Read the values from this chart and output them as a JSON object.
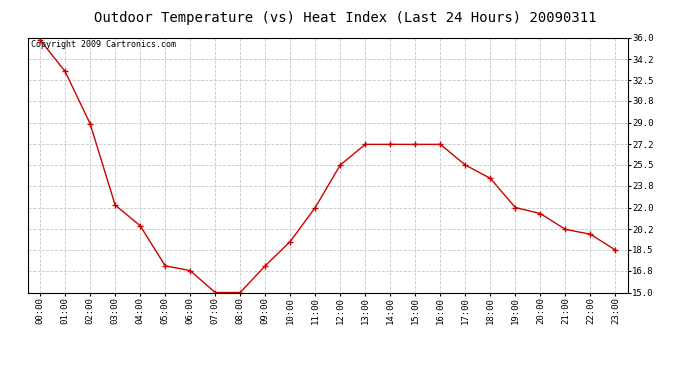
{
  "title": "Outdoor Temperature (vs) Heat Index (Last 24 Hours) 20090311",
  "copyright": "Copyright 2009 Cartronics.com",
  "x_labels": [
    "00:00",
    "01:00",
    "02:00",
    "03:00",
    "04:00",
    "05:00",
    "06:00",
    "07:00",
    "08:00",
    "09:00",
    "10:00",
    "11:00",
    "12:00",
    "13:00",
    "14:00",
    "15:00",
    "16:00",
    "17:00",
    "18:00",
    "19:00",
    "20:00",
    "21:00",
    "22:00",
    "23:00"
  ],
  "y_values": [
    35.8,
    33.2,
    28.9,
    22.2,
    20.5,
    17.2,
    16.8,
    15.0,
    15.0,
    17.2,
    19.2,
    22.0,
    25.5,
    27.2,
    27.2,
    27.2,
    27.2,
    25.5,
    24.4,
    22.0,
    21.5,
    20.2,
    19.8,
    18.5
  ],
  "line_color": "#cc0000",
  "marker": "+",
  "marker_size": 4,
  "marker_color": "#cc0000",
  "bg_color": "#ffffff",
  "plot_bg_color": "#ffffff",
  "grid_color": "#c8c8c8",
  "grid_style": "--",
  "y_min": 15.0,
  "y_max": 36.0,
  "y_ticks": [
    15.0,
    16.8,
    18.5,
    20.2,
    22.0,
    23.8,
    25.5,
    27.2,
    29.0,
    30.8,
    32.5,
    34.2,
    36.0
  ],
  "title_fontsize": 10,
  "tick_fontsize": 6.5,
  "copyright_fontsize": 6
}
